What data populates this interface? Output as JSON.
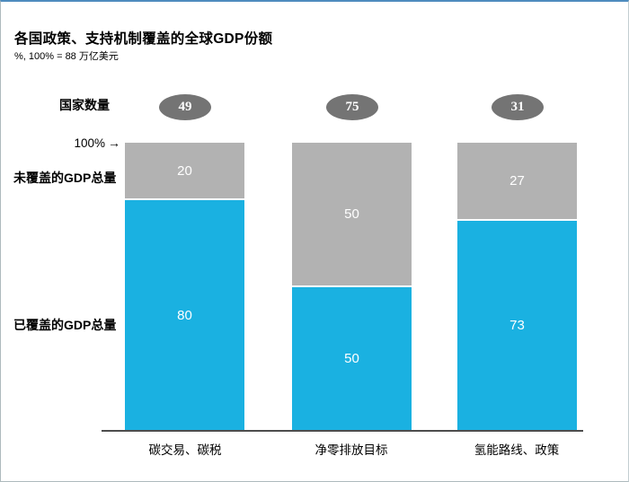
{
  "title": "各国政策、支持机制覆盖的全球GDP份额",
  "subtitle": "%, 100% = 88 万亿美元",
  "countries": {
    "label": "国家数量",
    "values": [
      "49",
      "75",
      "31"
    ]
  },
  "axis": {
    "top_label": "100%",
    "arrow": "→"
  },
  "row_labels": {
    "uncovered": "未覆盖的GDP总量",
    "covered": "已覆盖的GDP总量"
  },
  "colors": {
    "covered_cyan": "#1ab1e1",
    "uncovered_gray": "#b2b2b2",
    "oval_gray": "#747474",
    "axis_line": "#4d4d4d",
    "frame_top_border": "#4e8cbe"
  },
  "chart_data": {
    "type": "bar",
    "stacked": true,
    "title": "各国政策、支持机制覆盖的全球GDP份额",
    "subtitle": "%, 100% = 88 万亿美元",
    "unit": "%",
    "ylim": [
      0,
      100
    ],
    "grid": false,
    "legend_position": "left-row-labels",
    "categories": [
      "碳交易、碳税",
      "净零排放目标",
      "氢能路线、政策"
    ],
    "series": [
      {
        "name": "未覆盖的GDP总量",
        "color": "#b2b2b2",
        "values": [
          20,
          50,
          27
        ]
      },
      {
        "name": "已覆盖的GDP总量",
        "color": "#1ab1e1",
        "values": [
          80,
          50,
          73
        ]
      }
    ],
    "country_counts": [
      49,
      75,
      31
    ],
    "annotations": [
      "100% = 88 万亿美元",
      "国家数量"
    ]
  }
}
